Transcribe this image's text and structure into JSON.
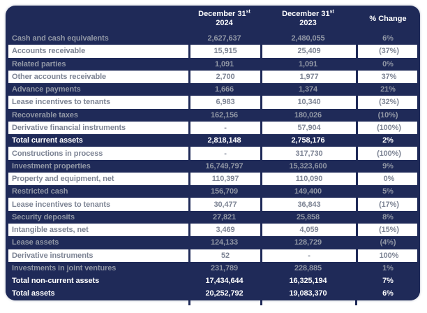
{
  "colors": {
    "navy": "#1F2A58",
    "gray_on_navy": "#9298A6",
    "gray_on_white": "#7D8494",
    "total_text": "#FFFFFF"
  },
  "table": {
    "header": {
      "date_prefix": "December 31",
      "ordinal_suffix": "st",
      "year_2024": "2024",
      "year_2023": "2023",
      "pct_change_label": "% Change"
    },
    "rows": [
      {
        "label": "Cash and cash equivalents",
        "v2024": "2,627,637",
        "v2023": "2,480,055",
        "change": "6%",
        "style": "dark"
      },
      {
        "label": "Accounts receivable",
        "v2024": "15,915",
        "v2023": "25,409",
        "change": "(37%)",
        "style": "light"
      },
      {
        "label": "Related parties",
        "v2024": "1,091",
        "v2023": "1,091",
        "change": "0%",
        "style": "dark"
      },
      {
        "label": "Other accounts receivable",
        "v2024": "2,700",
        "v2023": "1,977",
        "change": "37%",
        "style": "light"
      },
      {
        "label": "Advance payments",
        "v2024": "1,666",
        "v2023": "1,374",
        "change": "21%",
        "style": "dark"
      },
      {
        "label": "Lease incentives to tenants",
        "v2024": "6,983",
        "v2023": "10,340",
        "change": "(32%)",
        "style": "light"
      },
      {
        "label": "Recoverable taxes",
        "v2024": "162,156",
        "v2023": "180,026",
        "change": "(10%)",
        "style": "dark"
      },
      {
        "label": "Derivative financial instruments",
        "v2024": "-",
        "v2023": "57,904",
        "change": "(100%)",
        "style": "light"
      },
      {
        "label": "Total current assets",
        "v2024": "2,818,148",
        "v2023": "2,758,176",
        "change": "2%",
        "style": "total"
      },
      {
        "label": "Constructions in process",
        "v2024": "-",
        "v2023": "317,730",
        "change": "(100%)",
        "style": "light"
      },
      {
        "label": "Investment properties",
        "v2024": "16,749,797",
        "v2023": "15,323,600",
        "change": "9%",
        "style": "dark"
      },
      {
        "label": "Property and equipment, net",
        "v2024": "110,397",
        "v2023": "110,090",
        "change": "0%",
        "style": "light"
      },
      {
        "label": "Restricted cash",
        "v2024": "156,709",
        "v2023": "149,400",
        "change": "5%",
        "style": "dark"
      },
      {
        "label": "Lease incentives to tenants",
        "v2024": "30,477",
        "v2023": "36,843",
        "change": "(17%)",
        "style": "light"
      },
      {
        "label": "Security deposits",
        "v2024": "27,821",
        "v2023": "25,858",
        "change": "8%",
        "style": "dark"
      },
      {
        "label": "Intangible assets, net",
        "v2024": "3,469",
        "v2023": "4,059",
        "change": "(15%)",
        "style": "light"
      },
      {
        "label": "Lease assets",
        "v2024": "124,133",
        "v2023": "128,729",
        "change": "(4%)",
        "style": "dark"
      },
      {
        "label": "Derivative instruments",
        "v2024": "52",
        "v2023": "-",
        "change": "100%",
        "style": "light"
      },
      {
        "label": "Investments in joint ventures",
        "v2024": "231,789",
        "v2023": "228,885",
        "change": "1%",
        "style": "dark"
      },
      {
        "label": "Total non-current assets",
        "v2024": "17,434,644",
        "v2023": "16,325,194",
        "change": "7%",
        "style": "total"
      },
      {
        "label": "Total assets",
        "v2024": "20,252,792",
        "v2023": "19,083,370",
        "change": "6%",
        "style": "total"
      }
    ]
  }
}
